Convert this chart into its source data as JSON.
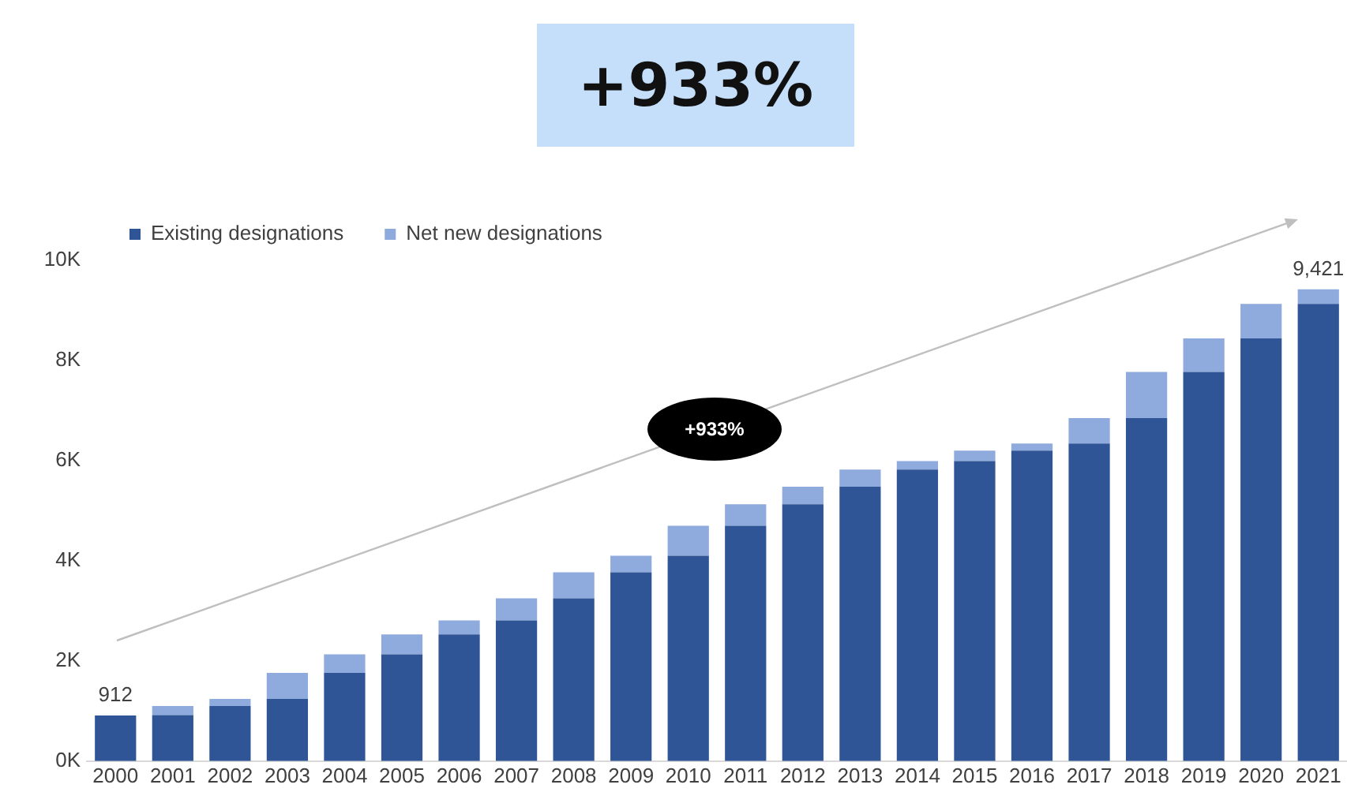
{
  "chart_data": {
    "type": "bar",
    "title": "+933%",
    "categories": [
      "2000",
      "2001",
      "2002",
      "2003",
      "2004",
      "2005",
      "2006",
      "2007",
      "2008",
      "2009",
      "2010",
      "2011",
      "2012",
      "2013",
      "2014",
      "2015",
      "2016",
      "2017",
      "2018",
      "2019",
      "2020",
      "2021"
    ],
    "series": [
      {
        "name": "Existing designations",
        "color": "#2f5597",
        "values": [
          912,
          920,
          1100,
          1240,
          1760,
          2130,
          2530,
          2810,
          3250,
          3770,
          4100,
          4700,
          5130,
          5480,
          5820,
          5990,
          6200,
          6340,
          6850,
          7770,
          8440,
          9130
        ]
      },
      {
        "name": "Net new designations",
        "color": "#8faadc",
        "values": [
          0,
          180,
          140,
          520,
          370,
          400,
          280,
          440,
          520,
          330,
          600,
          430,
          350,
          340,
          170,
          210,
          140,
          510,
          920,
          670,
          690,
          291
        ]
      }
    ],
    "stacked": true,
    "ylim": [
      0,
      10000
    ],
    "yticks": [
      {
        "value": 0,
        "label": "0K"
      },
      {
        "value": 2000,
        "label": "2K"
      },
      {
        "value": 4000,
        "label": "4K"
      },
      {
        "value": 6000,
        "label": "6K"
      },
      {
        "value": 8000,
        "label": "8K"
      },
      {
        "value": 10000,
        "label": "10K"
      }
    ],
    "totals": [
      "912",
      null,
      null,
      null,
      null,
      null,
      null,
      null,
      null,
      null,
      null,
      null,
      null,
      null,
      null,
      null,
      null,
      null,
      null,
      null,
      null,
      "9,421"
    ],
    "annotations": [
      "+933%"
    ],
    "legend": "top left",
    "grid": false
  }
}
